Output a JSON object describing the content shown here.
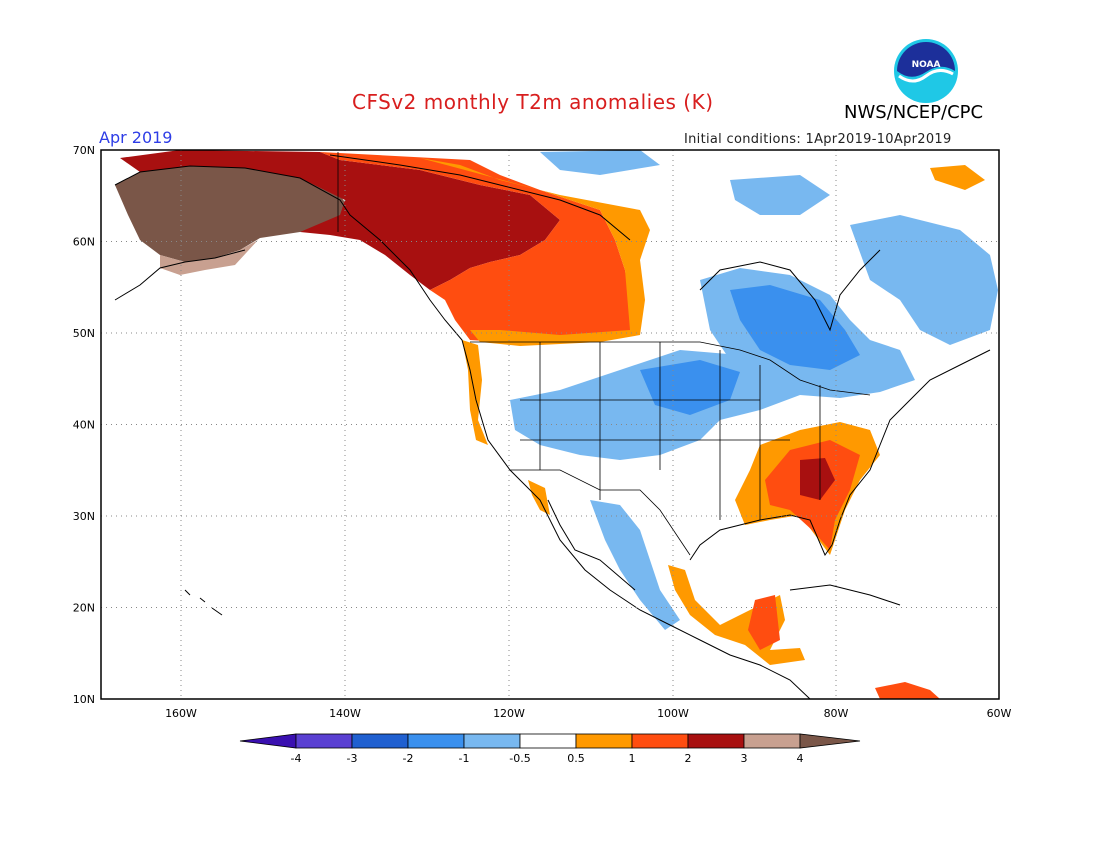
{
  "header": {
    "title": "CFSv2 monthly T2m anomalies (K)",
    "agency": "NWS/NCEP/CPC",
    "logo_text": "NOAA",
    "month": "Apr 2019",
    "initial_conditions": "Initial conditions: 1Apr2019-10Apr2019"
  },
  "axes": {
    "lat_labels": [
      "70N",
      "60N",
      "50N",
      "40N",
      "30N",
      "20N",
      "10N"
    ],
    "lon_labels": [
      "160W",
      "140W",
      "120W",
      "100W",
      "80W",
      "60W"
    ]
  },
  "colorbar": {
    "tick_labels": [
      "-4",
      "-3",
      "-2",
      "-1",
      "-0.5",
      "0.5",
      "1",
      "2",
      "3",
      "4"
    ],
    "colors": [
      "#3a10b0",
      "#5a40d2",
      "#2060d0",
      "#3a90ee",
      "#78b8f0",
      "#ffffff",
      "#ff9900",
      "#ff4d10",
      "#a81010",
      "#c8a090",
      "#7a5648"
    ]
  },
  "colors": {
    "title": "#d81e1e",
    "month": "#2e3de6",
    "land_lines": "#000000",
    "grid": "#888888"
  }
}
